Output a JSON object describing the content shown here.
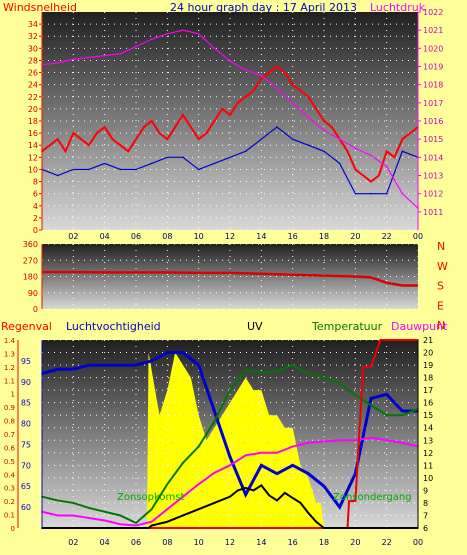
{
  "header": {
    "left_label": "Windsnelheid",
    "title": "24 hour graph day : 17 April 2013",
    "right_label": "Luchtdruk"
  },
  "bottom_header": {
    "regenval": "Regenval",
    "luchtvochtigheid": "Luchtvochtigheid",
    "uv": "UV",
    "temperatuur": "Temperatuur",
    "dauwpunt": "Dauwpunt"
  },
  "annotations": {
    "sunrise": "Zonsopkomst",
    "sunset": "Zonsondergang"
  },
  "colors": {
    "background": "#ffff99",
    "wind": "#ff0000",
    "gust": "#0000cc",
    "pressure": "#ff00ff",
    "direction": "#dd0000",
    "humidity": "#0000cc",
    "uv_fill": "#ffff00",
    "temperature": "#007700",
    "dewpoint": "#ff00ff",
    "rain": "#ee0000",
    "solar": "#000000"
  },
  "chart_data": [
    {
      "type": "line",
      "title": "24 hour graph day : 17 April 2013",
      "x_ticks": [
        "02",
        "04",
        "06",
        "08",
        "10",
        "12",
        "14",
        "16",
        "18",
        "20",
        "22",
        "00"
      ],
      "left_axis": {
        "label": "Windsnelheid",
        "range": [
          0,
          36
        ],
        "ticks": [
          0,
          2,
          4,
          6,
          8,
          10,
          12,
          14,
          16,
          18,
          20,
          22,
          24,
          26,
          28,
          30,
          32,
          34
        ]
      },
      "right_axis": {
        "label": "Luchtdruk",
        "range": [
          1010,
          1022
        ],
        "ticks": [
          1011,
          1012,
          1013,
          1014,
          1015,
          1016,
          1017,
          1018,
          1019,
          1020,
          1021,
          1022
        ]
      },
      "grid": true,
      "series": [
        {
          "color": "#ff0000",
          "axis": "left",
          "x": [
            0,
            0.5,
            1,
            1.5,
            2,
            2.5,
            3,
            3.5,
            4,
            4.5,
            5,
            5.5,
            6,
            6.5,
            7,
            7.5,
            8,
            8.5,
            9,
            9.5,
            10,
            10.5,
            11,
            11.5,
            12,
            12.5,
            13,
            13.5,
            14,
            14.5,
            15,
            15.5,
            16,
            16.5,
            17,
            17.5,
            18,
            18.5,
            19,
            19.5,
            20,
            20.5,
            21,
            21.5,
            22,
            22.5,
            23,
            23.5,
            24
          ],
          "values": [
            13,
            14,
            15,
            13,
            16,
            15,
            14,
            16,
            17,
            15,
            14,
            13,
            15,
            17,
            18,
            16,
            15,
            17,
            19,
            17,
            15,
            16,
            18,
            20,
            19,
            21,
            22,
            23,
            25,
            26,
            27,
            26,
            24,
            23,
            22,
            20,
            18,
            17,
            15,
            13,
            10,
            9,
            8,
            9,
            13,
            12,
            15,
            16,
            17
          ]
        },
        {
          "color": "#0000cc",
          "axis": "left",
          "x": [
            0,
            1,
            2,
            3,
            4,
            5,
            6,
            7,
            8,
            9,
            10,
            11,
            12,
            13,
            14,
            15,
            16,
            17,
            18,
            19,
            20,
            21,
            22,
            23,
            24
          ],
          "values": [
            10,
            9,
            10,
            10,
            11,
            10,
            10,
            11,
            12,
            12,
            10,
            11,
            12,
            13,
            15,
            17,
            15,
            14,
            13,
            11,
            6,
            6,
            6,
            13,
            12
          ]
        },
        {
          "color": "#ff00ff",
          "axis": "right",
          "x": [
            0,
            1,
            2,
            3,
            4,
            5,
            6,
            7,
            8,
            9,
            10,
            11,
            12,
            13,
            14,
            15,
            16,
            17,
            18,
            19,
            20,
            21,
            22,
            23,
            24
          ],
          "values": [
            1019.1,
            1019.2,
            1019.4,
            1019.5,
            1019.6,
            1019.7,
            1020.1,
            1020.5,
            1020.8,
            1021.0,
            1020.8,
            1020.0,
            1019.3,
            1018.8,
            1018.5,
            1017.8,
            1017.0,
            1016.2,
            1015.5,
            1015.0,
            1014.5,
            1014.1,
            1013.5,
            1012.0,
            1011.2
          ]
        }
      ]
    },
    {
      "type": "line",
      "y_axis": {
        "range": [
          0,
          360
        ],
        "ticks": [
          0,
          90,
          180,
          270,
          360
        ]
      },
      "right_labels": [
        "N",
        "W",
        "S",
        "E",
        "N"
      ],
      "x_ticks": [
        "02",
        "04",
        "06",
        "08",
        "10",
        "12",
        "14",
        "16",
        "18",
        "20",
        "22",
        "00"
      ],
      "grid": true,
      "series": [
        {
          "color": "#dd0000",
          "x": [
            0,
            2,
            4,
            6,
            8,
            10,
            12,
            14,
            16,
            18,
            20,
            21,
            22,
            23,
            24
          ],
          "values": [
            205,
            205,
            203,
            203,
            203,
            200,
            200,
            195,
            190,
            185,
            180,
            175,
            145,
            130,
            130
          ]
        }
      ]
    },
    {
      "type": "line",
      "x_ticks": [
        "02",
        "04",
        "06",
        "08",
        "10",
        "12",
        "14",
        "16",
        "18",
        "20",
        "22",
        "00"
      ],
      "left_axes": [
        {
          "label": "Regenval",
          "range": [
            0,
            1.4
          ],
          "ticks": [
            0,
            0.1,
            0.2,
            0.3,
            0.4,
            0.5,
            0.6,
            0.7,
            0.8,
            0.9,
            1,
            1.1,
            1.2,
            1.3,
            1.4
          ]
        },
        {
          "label": "Luchtvochtigheid",
          "range": [
            55,
            100
          ],
          "ticks": [
            60,
            65,
            70,
            75,
            80,
            85,
            90,
            95
          ]
        }
      ],
      "right_axes": [
        {
          "label": "UV",
          "range": [
            6,
            21
          ],
          "ticks": [
            6,
            7,
            8,
            9,
            10,
            11,
            12,
            13,
            14,
            15,
            16,
            17,
            18,
            19,
            20,
            21
          ]
        }
      ],
      "grid": true,
      "series": [
        {
          "color": "#0000cc",
          "axis": "humidity",
          "x": [
            0,
            1,
            2,
            3,
            4,
            5,
            6,
            7,
            8,
            9,
            10,
            11,
            12,
            13,
            14,
            15,
            16,
            17,
            18,
            19,
            20,
            21,
            22,
            23,
            24
          ],
          "values": [
            92,
            93,
            93,
            94,
            94,
            94,
            94,
            95,
            97,
            97,
            94,
            83,
            72,
            63,
            70,
            68,
            70,
            68,
            65,
            60,
            68,
            86,
            87,
            83,
            83
          ]
        },
        {
          "color": "#007700",
          "axis": "temperature",
          "x": [
            0,
            1,
            2,
            3,
            4,
            5,
            6,
            7,
            8,
            9,
            10,
            11,
            12,
            13,
            14,
            15,
            16,
            17,
            18,
            19,
            20,
            21,
            22,
            23,
            24
          ],
          "values": [
            8.5,
            8.2,
            8,
            7.6,
            7.3,
            7,
            6.4,
            7.5,
            9.5,
            11.2,
            12.5,
            14.5,
            17,
            18.6,
            18.4,
            18.5,
            19,
            18.3,
            18,
            17.5,
            16.6,
            15.8,
            15,
            15,
            15.5
          ]
        },
        {
          "color": "#ff00ff",
          "axis": "temperature",
          "x": [
            0,
            1,
            2,
            3,
            4,
            5,
            6,
            7,
            8,
            9,
            10,
            11,
            12,
            13,
            14,
            15,
            16,
            17,
            18,
            19,
            20,
            21,
            22,
            23,
            24
          ],
          "values": [
            7.3,
            7,
            7,
            6.8,
            6.6,
            6.3,
            6.2,
            6.5,
            7.5,
            8.5,
            9.5,
            10.4,
            11,
            11.8,
            12,
            12,
            12.5,
            12.8,
            12.9,
            13,
            13,
            13.2,
            13,
            12.8,
            12.5
          ]
        },
        {
          "color": "#ee0000",
          "axis": "rain",
          "x": [
            0,
            19.5,
            19.6,
            20,
            20.5,
            21,
            21.6,
            24
          ],
          "values": [
            0,
            0,
            0.2,
            0.2,
            1.2,
            1.2,
            1.4,
            1.4
          ]
        },
        {
          "color": "#000000",
          "axis": "uv",
          "x": [
            0,
            6.8,
            7,
            8,
            9,
            10,
            11,
            12,
            12.5,
            13,
            13.5,
            14,
            14.5,
            15,
            15.5,
            16,
            16.5,
            17,
            17.5,
            18,
            24
          ],
          "values": [
            6,
            6,
            6.2,
            6.5,
            7,
            7.5,
            8,
            8.5,
            9,
            9.2,
            9,
            9.4,
            8.6,
            8.2,
            8.8,
            8.4,
            8,
            7.2,
            6.5,
            6,
            6
          ]
        },
        {
          "color": "#ffff00",
          "axis": "uv",
          "kind": "area",
          "x": [
            6.7,
            6.8,
            7.5,
            8,
            8.5,
            9,
            9.5,
            10,
            10.5,
            11,
            11.5,
            12,
            12.5,
            13,
            13.5,
            14,
            14.5,
            15,
            15.5,
            16,
            16.5,
            17,
            17.5,
            17.8,
            18,
            24
          ],
          "values": [
            6,
            20,
            15,
            17,
            20,
            19,
            18,
            15,
            13,
            14,
            15,
            16,
            17,
            18,
            17,
            17,
            15,
            15,
            14,
            14,
            11,
            10,
            8,
            8,
            6,
            6
          ]
        }
      ]
    }
  ]
}
